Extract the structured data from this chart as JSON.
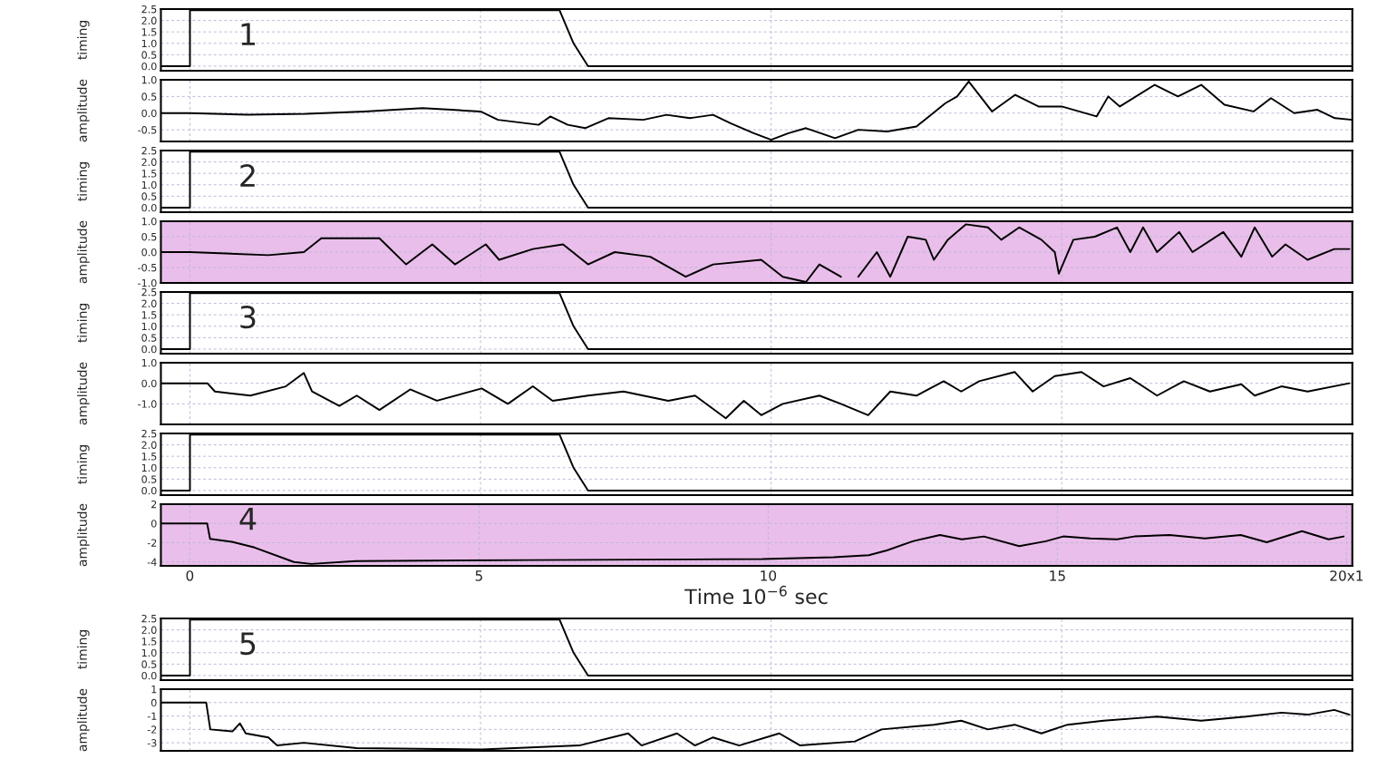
{
  "chart_data": [
    {
      "type": "line",
      "ylabel": "timing",
      "annotations": [
        "1"
      ],
      "tick_labels": "y",
      "grid": true,
      "xlim": [
        -0.5,
        20
      ],
      "xticks": [
        0,
        5,
        10,
        15
      ],
      "ylim": [
        -0.2,
        2.5
      ],
      "yticks": [
        {
          "value": 0,
          "label": "0.0"
        },
        {
          "value": 0.5,
          "label": "0.5"
        },
        {
          "value": 1,
          "label": "1.0"
        },
        {
          "value": 1.5,
          "label": "1.5"
        },
        {
          "value": 2,
          "label": "2.0"
        },
        {
          "value": 2.5,
          "label": "2.5"
        }
      ],
      "color": "#000000",
      "x": [
        -0.5,
        0,
        0,
        6.36,
        6.6,
        6.85,
        20
      ],
      "values": [
        0,
        0,
        2.45,
        2.45,
        1.0,
        0.0,
        0.0
      ]
    },
    {
      "type": "line",
      "ylabel": "amplitude",
      "tick_labels": "y",
      "grid": true,
      "xlim": [
        -0.5,
        20
      ],
      "xticks": [
        0,
        5,
        10,
        15
      ],
      "ylim": [
        -0.85,
        1.0
      ],
      "yticks": [
        {
          "value": -0.5,
          "label": "-0.5"
        },
        {
          "value": 0,
          "label": "0.0"
        },
        {
          "value": 0.5,
          "label": "0.5"
        },
        {
          "value": 1,
          "label": "1.0"
        }
      ],
      "color": "#000000",
      "x": [
        -0.5,
        0,
        1,
        2,
        3,
        4,
        4.5,
        5,
        5.3,
        6,
        6.2,
        6.5,
        6.8,
        7.2,
        7.8,
        8.2,
        8.6,
        9,
        9.3,
        9.7,
        10,
        10.3,
        10.6,
        11.1,
        11.5,
        12,
        12.5,
        13,
        13.2,
        13.4,
        13.8,
        14.2,
        14.6,
        15,
        15.6,
        15.8,
        16,
        16.6,
        17,
        17.4,
        17.8,
        18.3,
        18.6,
        19,
        19.4,
        19.7,
        20
      ],
      "values": [
        0,
        0,
        -0.05,
        -0.02,
        0.05,
        0.15,
        0.1,
        0.05,
        -0.2,
        -0.35,
        -0.1,
        -0.35,
        -0.45,
        -0.15,
        -0.2,
        -0.05,
        -0.15,
        -0.05,
        -0.3,
        -0.6,
        -0.8,
        -0.6,
        -0.45,
        -0.75,
        -0.5,
        -0.55,
        -0.4,
        0.3,
        0.5,
        0.95,
        0.05,
        0.55,
        0.2,
        0.2,
        -0.1,
        0.5,
        0.2,
        0.85,
        0.5,
        0.85,
        0.25,
        0.05,
        0.45,
        0.0,
        0.1,
        -0.15,
        -0.2
      ]
    },
    {
      "type": "line",
      "ylabel": "timing",
      "annotations": [
        "2"
      ],
      "tick_labels": "y",
      "grid": true,
      "xlim": [
        -0.5,
        20
      ],
      "xticks": [
        0,
        5,
        10,
        15
      ],
      "ylim": [
        -0.2,
        2.5
      ],
      "yticks": [
        {
          "value": 0,
          "label": "0.0"
        },
        {
          "value": 0.5,
          "label": "0.5"
        },
        {
          "value": 1,
          "label": "1.0"
        },
        {
          "value": 1.5,
          "label": "1.5"
        },
        {
          "value": 2,
          "label": "2.0"
        },
        {
          "value": 2.5,
          "label": "2.5"
        }
      ],
      "color": "#000000",
      "x": [
        -0.5,
        0,
        0,
        6.36,
        6.6,
        6.85,
        20
      ],
      "values": [
        0,
        0,
        2.45,
        2.45,
        1.0,
        0.0,
        0.0
      ]
    },
    {
      "type": "line",
      "ylabel": "amplitude",
      "tick_labels": "y",
      "grid": true,
      "xlim": [
        -0.5,
        20
      ],
      "xticks": [
        0,
        5,
        10,
        15
      ],
      "ylim": [
        -1.0,
        1.0
      ],
      "yticks": [
        {
          "value": -1,
          "label": "-1.0"
        },
        {
          "value": -0.5,
          "label": "-0.5"
        },
        {
          "value": 0,
          "label": "0.0"
        },
        {
          "value": 0.5,
          "label": "0.5"
        },
        {
          "value": 1,
          "label": "1.0"
        }
      ],
      "color": "#000000",
      "bands": [
        {
          "axis": "y",
          "from": -1.0,
          "to": 1.0,
          "color": "#e6b3e6"
        }
      ],
      "x": [
        -0.5,
        0,
        1.35,
        1.96,
        2.26,
        3.26,
        3.72,
        4.17,
        4.56,
        5.09,
        5.32,
        5.9,
        6.42,
        6.85,
        7.31,
        7.92,
        8.53,
        9.0,
        9.83,
        10.2,
        10.6,
        10.83,
        11.2,
        11.35,
        11.5,
        11.82,
        12.05,
        12.35,
        12.66,
        12.8,
        13.04,
        13.35,
        13.73,
        13.96,
        14.27,
        14.65,
        14.88,
        14.95,
        15.2,
        15.57,
        15.95,
        16.18,
        16.4,
        16.64,
        17.02,
        17.25,
        17.78,
        18.09,
        18.32,
        18.62,
        18.85,
        19.23,
        19.69,
        19.95
      ],
      "values": [
        0,
        0,
        -0.1,
        0,
        0.45,
        0.45,
        -0.4,
        0.25,
        -0.4,
        0.25,
        -0.25,
        0.1,
        0.25,
        -0.4,
        0,
        -0.15,
        -0.8,
        -0.4,
        -0.25,
        -0.8,
        -0.97,
        -0.4,
        -0.8,
        null,
        -0.8,
        0,
        -0.8,
        0.5,
        0.4,
        -0.25,
        0.4,
        0.9,
        0.8,
        0.4,
        0.8,
        0.4,
        0,
        -0.7,
        0.4,
        0.5,
        0.8,
        0,
        0.8,
        0,
        0.65,
        0,
        0.65,
        -0.15,
        0.8,
        -0.15,
        0.25,
        -0.25,
        0.1,
        0.1
      ]
    },
    {
      "type": "line",
      "ylabel": "timing",
      "annotations": [
        "3"
      ],
      "tick_labels": "y",
      "grid": true,
      "xlim": [
        -0.5,
        20
      ],
      "xticks": [
        0,
        5,
        10,
        15
      ],
      "ylim": [
        -0.2,
        2.5
      ],
      "yticks": [
        {
          "value": 0,
          "label": "0.0"
        },
        {
          "value": 0.5,
          "label": "0.5"
        },
        {
          "value": 1,
          "label": "1.0"
        },
        {
          "value": 1.5,
          "label": "1.5"
        },
        {
          "value": 2,
          "label": "2.0"
        },
        {
          "value": 2.5,
          "label": "2.5"
        }
      ],
      "color": "#000000",
      "x": [
        -0.5,
        0,
        0,
        6.36,
        6.6,
        6.85,
        20
      ],
      "values": [
        0,
        0,
        2.45,
        2.45,
        1.0,
        0.0,
        0.0
      ]
    },
    {
      "type": "line",
      "ylabel": "amplitude",
      "tick_labels": "y",
      "grid": true,
      "xlim": [
        -0.5,
        20
      ],
      "xticks": [
        0,
        5,
        10,
        15
      ],
      "ylim": [
        -2.0,
        1.0
      ],
      "yticks": [
        {
          "value": -1,
          "label": "-1.0"
        },
        {
          "value": 0,
          "label": "0.0"
        },
        {
          "value": 1,
          "label": "1.0"
        }
      ],
      "color": "#000000",
      "x": [
        -0.5,
        0.3,
        0.43,
        1.04,
        1.65,
        1.96,
        2.1,
        2.57,
        2.87,
        3.26,
        3.79,
        4.25,
        5.02,
        5.47,
        5.9,
        6.24,
        6.85,
        7.46,
        8.23,
        8.69,
        9.22,
        9.53,
        9.83,
        10.2,
        10.83,
        11.2,
        11.67,
        12.05,
        12.5,
        12.97,
        13.27,
        13.58,
        14.19,
        14.5,
        14.88,
        15.34,
        15.72,
        16.18,
        16.64,
        17.1,
        17.55,
        18.09,
        18.32,
        18.78,
        19.23,
        19.95
      ],
      "values": [
        0,
        0,
        -0.4,
        -0.6,
        -0.15,
        0.5,
        -0.4,
        -1.1,
        -0.6,
        -1.3,
        -0.3,
        -0.85,
        -0.25,
        -1.0,
        -0.15,
        -0.85,
        -0.6,
        -0.4,
        -0.85,
        -0.6,
        -1.7,
        -0.85,
        -1.55,
        -1.0,
        -0.6,
        -1.0,
        -1.55,
        -0.4,
        -0.6,
        0.1,
        -0.4,
        0.1,
        0.55,
        -0.4,
        0.35,
        0.55,
        -0.15,
        0.25,
        -0.6,
        0.1,
        -0.4,
        -0.05,
        -0.6,
        -0.15,
        -0.4,
        0
      ]
    },
    {
      "type": "line",
      "ylabel": "timing",
      "tick_labels": "y",
      "grid": true,
      "xlim": [
        -0.5,
        20
      ],
      "xticks": [
        0,
        5,
        10,
        15
      ],
      "ylim": [
        -0.2,
        2.5
      ],
      "yticks": [
        {
          "value": 0,
          "label": "0.0"
        },
        {
          "value": 0.5,
          "label": "0.5"
        },
        {
          "value": 1,
          "label": "1.0"
        },
        {
          "value": 1.5,
          "label": "1.5"
        },
        {
          "value": 2,
          "label": "2.0"
        },
        {
          "value": 2.5,
          "label": "2.5"
        }
      ],
      "color": "#000000",
      "x": [
        -0.5,
        0,
        0,
        6.36,
        6.6,
        6.85,
        20
      ],
      "values": [
        0,
        0,
        2.45,
        2.45,
        1.0,
        0.0,
        0.0
      ]
    },
    {
      "type": "line",
      "ylabel": "amplitude",
      "xlabel": "Time 10$^{−6}$ sec",
      "annotations": [
        "4"
      ],
      "grid": true,
      "xlim": [
        -0.5,
        20.1
      ],
      "xticks": [
        0,
        5,
        10,
        15,
        {
          "value": 20,
          "label": "20x1"
        }
      ],
      "ylim": [
        -4.4,
        2
      ],
      "yticks": [
        -4,
        -2,
        0,
        2
      ],
      "color": "#000000",
      "bands": [
        {
          "axis": "y",
          "from": -4.4,
          "to": 2,
          "color": "#e6b3e6"
        }
      ],
      "x": [
        -0.5,
        0.3,
        0.35,
        0.73,
        1.12,
        1.8,
        2.1,
        2.87,
        5.9,
        9.9,
        11.13,
        11.74,
        12.05,
        12.5,
        12.97,
        13.35,
        13.73,
        14.34,
        14.8,
        15.1,
        15.57,
        16.03,
        16.33,
        16.94,
        17.55,
        18.17,
        18.62,
        19.23,
        19.69,
        19.95
      ],
      "values": [
        0,
        0,
        -1.6,
        -1.9,
        -2.5,
        -4.0,
        -4.2,
        -3.9,
        -3.8,
        -3.7,
        -3.5,
        -3.3,
        -2.8,
        -1.85,
        -1.2,
        -1.65,
        -1.35,
        -2.35,
        -1.85,
        -1.35,
        -1.55,
        -1.65,
        -1.35,
        -1.2,
        -1.55,
        -1.2,
        -1.95,
        -0.8,
        -1.65,
        -1.35
      ]
    },
    {
      "type": "line",
      "ylabel": "timing",
      "annotations": [
        "5"
      ],
      "tick_labels": "y",
      "grid": true,
      "xlim": [
        -0.5,
        20
      ],
      "xticks": [
        0,
        5,
        10,
        15
      ],
      "ylim": [
        -0.2,
        2.5
      ],
      "yticks": [
        {
          "value": 0,
          "label": "0.0"
        },
        {
          "value": 0.5,
          "label": "0.5"
        },
        {
          "value": 1,
          "label": "1.0"
        },
        {
          "value": 1.5,
          "label": "1.5"
        },
        {
          "value": 2,
          "label": "2.0"
        },
        {
          "value": 2.5,
          "label": "2.5"
        }
      ],
      "color": "#000000",
      "x": [
        -0.5,
        0,
        0,
        6.36,
        6.6,
        6.85,
        20
      ],
      "values": [
        0,
        0,
        2.45,
        2.45,
        1.0,
        0.0,
        0.0
      ]
    },
    {
      "type": "line",
      "ylabel": "amplitude",
      "tick_labels": "y",
      "grid": true,
      "xlim": [
        -0.5,
        20
      ],
      "xticks": [
        0,
        5,
        10,
        15
      ],
      "ylim": [
        -3.6,
        1
      ],
      "yticks": [
        -3,
        -2,
        -1,
        0,
        1
      ],
      "color": "#000000",
      "x": [
        -0.5,
        0.28,
        0.35,
        0.73,
        0.86,
        0.96,
        1.35,
        1.5,
        1.96,
        2.87,
        5.02,
        6.7,
        7.54,
        7.77,
        8.38,
        8.69,
        9.0,
        9.45,
        10.14,
        10.5,
        11.44,
        11.9,
        12.8,
        13.27,
        13.73,
        14.19,
        14.65,
        15.1,
        15.72,
        16.64,
        17.4,
        18.17,
        18.78,
        19.23,
        19.69,
        19.95
      ],
      "values": [
        0,
        0,
        -2.0,
        -2.15,
        -1.55,
        -2.3,
        -2.6,
        -3.2,
        -3.0,
        -3.4,
        -3.5,
        -3.2,
        -2.3,
        -3.2,
        -2.3,
        -3.2,
        -2.6,
        -3.2,
        -2.3,
        -3.2,
        -2.9,
        -2.0,
        -1.65,
        -1.35,
        -2.0,
        -1.65,
        -2.3,
        -1.65,
        -1.35,
        -1.05,
        -1.35,
        -1.05,
        -0.75,
        -0.9,
        -0.55,
        -0.9
      ]
    }
  ]
}
